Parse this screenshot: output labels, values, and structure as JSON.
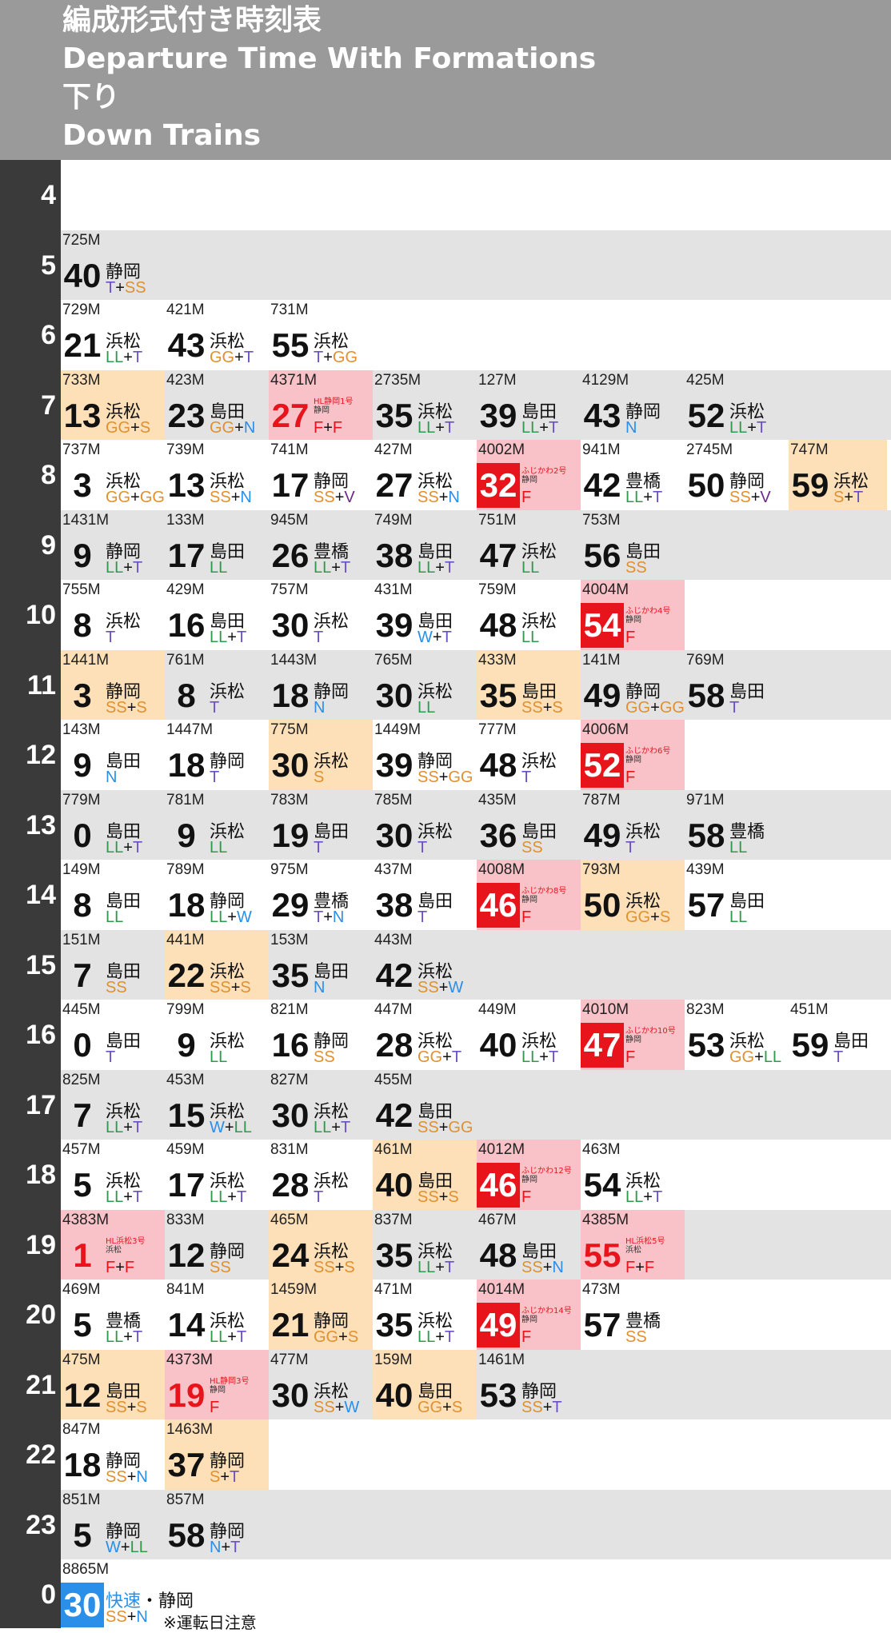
{
  "title": {
    "ja": "編成形式付き時刻表",
    "en": "Departure Time With Formations",
    "direction_ja": "下り",
    "direction_en": "Down Trains"
  },
  "colors": {
    "header_bg": "#9a9a9a",
    "sidebar_bg": "#3a3a3a",
    "row_alt_bg": "#e3e3e3",
    "highlight_orange": "#fde0b8",
    "highlight_pink": "#f8c2c8",
    "red": "#e8141c",
    "blue": "#2a8fe8",
    "formation_codes": {
      "LL": "#2e9a4c",
      "T": "#6b4fc4",
      "W": "#2a8fe8",
      "N": "#2a8fe8",
      "GG": "#e0902e",
      "S": "#e0902e",
      "SS": "#e0902e",
      "V": "#6a2a86",
      "F": "#e8141c"
    }
  },
  "hours": [
    {
      "hour": "4",
      "trains": []
    },
    {
      "hour": "5",
      "trains": [
        {
          "no": "725M",
          "min": "40",
          "dest": "静岡",
          "form": "T+SS"
        }
      ]
    },
    {
      "hour": "6",
      "trains": [
        {
          "no": "729M",
          "min": "21",
          "dest": "浜松",
          "form": "LL+T"
        },
        {
          "no": "421M",
          "min": "43",
          "dest": "浜松",
          "form": "GG+T"
        },
        {
          "no": "731M",
          "min": "55",
          "dest": "浜松",
          "form": "T+GG"
        }
      ]
    },
    {
      "hour": "7",
      "trains": [
        {
          "no": "733M",
          "min": "13",
          "dest": "浜松",
          "form": "GG+S",
          "hl": "orange"
        },
        {
          "no": "423M",
          "min": "23",
          "dest": "島田",
          "form": "GG+N"
        },
        {
          "no": "4371M",
          "min": "27",
          "name": "HL静岡1号",
          "dest": "静岡",
          "form": "F+F",
          "hl": "pink",
          "num": "red"
        },
        {
          "no": "2735M",
          "min": "35",
          "dest": "浜松",
          "form": "LL+T"
        },
        {
          "no": "127M",
          "min": "39",
          "dest": "島田",
          "form": "LL+T"
        },
        {
          "no": "4129M",
          "min": "43",
          "dest": "静岡",
          "form": "N"
        },
        {
          "no": "425M",
          "min": "52",
          "dest": "浜松",
          "form": "LL+T"
        }
      ]
    },
    {
      "hour": "8",
      "trains": [
        {
          "no": "737M",
          "min": "3",
          "dest": "浜松",
          "form": "GG+GG"
        },
        {
          "no": "739M",
          "min": "13",
          "dest": "浜松",
          "form": "SS+N"
        },
        {
          "no": "741M",
          "min": "17",
          "dest": "静岡",
          "form": "SS+V"
        },
        {
          "no": "427M",
          "min": "27",
          "dest": "浜松",
          "form": "SS+N"
        },
        {
          "no": "4002M",
          "min": "32",
          "name": "ふじかわ2号",
          "dest": "静岡",
          "form": "F",
          "hl": "pink",
          "num": "box"
        },
        {
          "no": "941M",
          "min": "42",
          "dest": "豊橋",
          "form": "LL+T"
        },
        {
          "no": "2745M",
          "min": "50",
          "dest": "静岡",
          "form": "SS+V"
        },
        {
          "no": "747M",
          "min": "59",
          "dest": "浜松",
          "form": "S+T",
          "hl": "orange"
        }
      ]
    },
    {
      "hour": "9",
      "trains": [
        {
          "no": "1431M",
          "min": "9",
          "dest": "静岡",
          "form": "LL+T"
        },
        {
          "no": "133M",
          "min": "17",
          "dest": "島田",
          "form": "LL"
        },
        {
          "no": "945M",
          "min": "26",
          "dest": "豊橋",
          "form": "LL+T"
        },
        {
          "no": "749M",
          "min": "38",
          "dest": "島田",
          "form": "LL+T"
        },
        {
          "no": "751M",
          "min": "47",
          "dest": "浜松",
          "form": "LL"
        },
        {
          "no": "753M",
          "min": "56",
          "dest": "島田",
          "form": "SS"
        }
      ]
    },
    {
      "hour": "10",
      "trains": [
        {
          "no": "755M",
          "min": "8",
          "dest": "浜松",
          "form": "T"
        },
        {
          "no": "429M",
          "min": "16",
          "dest": "島田",
          "form": "LL+T"
        },
        {
          "no": "757M",
          "min": "30",
          "dest": "浜松",
          "form": "T"
        },
        {
          "no": "431M",
          "min": "39",
          "dest": "島田",
          "form": "W+T"
        },
        {
          "no": "759M",
          "min": "48",
          "dest": "浜松",
          "form": "LL"
        },
        {
          "no": "4004M",
          "min": "54",
          "name": "ふじかわ4号",
          "dest": "静岡",
          "form": "F",
          "hl": "pink",
          "num": "box"
        }
      ]
    },
    {
      "hour": "11",
      "trains": [
        {
          "no": "1441M",
          "min": "3",
          "dest": "静岡",
          "form": "SS+S",
          "hl": "orange"
        },
        {
          "no": "761M",
          "min": "8",
          "dest": "浜松",
          "form": "T"
        },
        {
          "no": "1443M",
          "min": "18",
          "dest": "静岡",
          "form": "N"
        },
        {
          "no": "765M",
          "min": "30",
          "dest": "浜松",
          "form": "LL"
        },
        {
          "no": "433M",
          "min": "35",
          "dest": "島田",
          "form": "SS+S",
          "hl": "orange"
        },
        {
          "no": "141M",
          "min": "49",
          "dest": "静岡",
          "form": "GG+GG"
        },
        {
          "no": "769M",
          "min": "58",
          "dest": "島田",
          "form": "T"
        }
      ]
    },
    {
      "hour": "12",
      "trains": [
        {
          "no": "143M",
          "min": "9",
          "dest": "島田",
          "form": "N"
        },
        {
          "no": "1447M",
          "min": "18",
          "dest": "静岡",
          "form": "T"
        },
        {
          "no": "775M",
          "min": "30",
          "dest": "浜松",
          "form": "S",
          "hl": "orange"
        },
        {
          "no": "1449M",
          "min": "39",
          "dest": "静岡",
          "form": "SS+GG"
        },
        {
          "no": "777M",
          "min": "48",
          "dest": "浜松",
          "form": "T"
        },
        {
          "no": "4006M",
          "min": "52",
          "name": "ふじかわ6号",
          "dest": "静岡",
          "form": "F",
          "hl": "pink",
          "num": "box"
        }
      ]
    },
    {
      "hour": "13",
      "trains": [
        {
          "no": "779M",
          "min": "0",
          "dest": "島田",
          "form": "LL+T"
        },
        {
          "no": "781M",
          "min": "9",
          "dest": "浜松",
          "form": "LL"
        },
        {
          "no": "783M",
          "min": "19",
          "dest": "島田",
          "form": "T"
        },
        {
          "no": "785M",
          "min": "30",
          "dest": "浜松",
          "form": "T"
        },
        {
          "no": "435M",
          "min": "36",
          "dest": "島田",
          "form": "SS"
        },
        {
          "no": "787M",
          "min": "49",
          "dest": "浜松",
          "form": "T"
        },
        {
          "no": "971M",
          "min": "58",
          "dest": "豊橋",
          "form": "LL"
        }
      ]
    },
    {
      "hour": "14",
      "trains": [
        {
          "no": "149M",
          "min": "8",
          "dest": "島田",
          "form": "LL"
        },
        {
          "no": "789M",
          "min": "18",
          "dest": "静岡",
          "form": "LL+W"
        },
        {
          "no": "975M",
          "min": "29",
          "dest": "豊橋",
          "form": "T+N"
        },
        {
          "no": "437M",
          "min": "38",
          "dest": "島田",
          "form": "T"
        },
        {
          "no": "4008M",
          "min": "46",
          "name": "ふじかわ8号",
          "dest": "静岡",
          "form": "F",
          "hl": "pink",
          "num": "box"
        },
        {
          "no": "793M",
          "min": "50",
          "dest": "浜松",
          "form": "GG+S",
          "hl": "orange"
        },
        {
          "no": "439M",
          "min": "57",
          "dest": "島田",
          "form": "LL"
        }
      ]
    },
    {
      "hour": "15",
      "trains": [
        {
          "no": "151M",
          "min": "7",
          "dest": "島田",
          "form": "SS"
        },
        {
          "no": "441M",
          "min": "22",
          "dest": "浜松",
          "form": "SS+S",
          "hl": "orange"
        },
        {
          "no": "153M",
          "min": "35",
          "dest": "島田",
          "form": "N"
        },
        {
          "no": "443M",
          "min": "42",
          "dest": "浜松",
          "form": "SS+W"
        }
      ]
    },
    {
      "hour": "16",
      "trains": [
        {
          "no": "445M",
          "min": "0",
          "dest": "島田",
          "form": "T"
        },
        {
          "no": "799M",
          "min": "9",
          "dest": "浜松",
          "form": "LL"
        },
        {
          "no": "821M",
          "min": "16",
          "dest": "静岡",
          "form": "SS"
        },
        {
          "no": "447M",
          "min": "28",
          "dest": "浜松",
          "form": "GG+T"
        },
        {
          "no": "449M",
          "min": "40",
          "dest": "浜松",
          "form": "LL+T"
        },
        {
          "no": "4010M",
          "min": "47",
          "name": "ふじかわ10号",
          "dest": "静岡",
          "form": "F",
          "hl": "pink",
          "num": "box"
        },
        {
          "no": "823M",
          "min": "53",
          "dest": "浜松",
          "form": "GG+LL"
        },
        {
          "no": "451M",
          "min": "59",
          "dest": "島田",
          "form": "T"
        }
      ]
    },
    {
      "hour": "17",
      "trains": [
        {
          "no": "825M",
          "min": "7",
          "dest": "浜松",
          "form": "LL+T"
        },
        {
          "no": "453M",
          "min": "15",
          "dest": "浜松",
          "form": "W+LL"
        },
        {
          "no": "827M",
          "min": "30",
          "dest": "浜松",
          "form": "LL+T"
        },
        {
          "no": "455M",
          "min": "42",
          "dest": "島田",
          "form": "SS+GG"
        }
      ]
    },
    {
      "hour": "18",
      "trains": [
        {
          "no": "457M",
          "min": "5",
          "dest": "浜松",
          "form": "LL+T"
        },
        {
          "no": "459M",
          "min": "17",
          "dest": "浜松",
          "form": "LL+T"
        },
        {
          "no": "831M",
          "min": "28",
          "dest": "浜松",
          "form": "T"
        },
        {
          "no": "461M",
          "min": "40",
          "dest": "島田",
          "form": "SS+S",
          "hl": "orange"
        },
        {
          "no": "4012M",
          "min": "46",
          "name": "ふじかわ12号",
          "dest": "静岡",
          "form": "F",
          "hl": "pink",
          "num": "box"
        },
        {
          "no": "463M",
          "min": "54",
          "dest": "浜松",
          "form": "LL+T"
        }
      ]
    },
    {
      "hour": "19",
      "trains": [
        {
          "no": "4383M",
          "min": "1",
          "name": "HL浜松3号",
          "dest": "浜松",
          "form": "F+F",
          "hl": "pink",
          "num": "red"
        },
        {
          "no": "833M",
          "min": "12",
          "dest": "静岡",
          "form": "SS"
        },
        {
          "no": "465M",
          "min": "24",
          "dest": "浜松",
          "form": "SS+S",
          "hl": "orange"
        },
        {
          "no": "837M",
          "min": "35",
          "dest": "浜松",
          "form": "LL+T"
        },
        {
          "no": "467M",
          "min": "48",
          "dest": "島田",
          "form": "SS+N"
        },
        {
          "no": "4385M",
          "min": "55",
          "name": "HL浜松5号",
          "dest": "浜松",
          "form": "F+F",
          "hl": "pink",
          "num": "red"
        }
      ]
    },
    {
      "hour": "20",
      "trains": [
        {
          "no": "469M",
          "min": "5",
          "dest": "豊橋",
          "form": "LL+T"
        },
        {
          "no": "841M",
          "min": "14",
          "dest": "浜松",
          "form": "LL+T"
        },
        {
          "no": "1459M",
          "min": "21",
          "dest": "静岡",
          "form": "GG+S",
          "hl": "orange"
        },
        {
          "no": "471M",
          "min": "35",
          "dest": "浜松",
          "form": "LL+T"
        },
        {
          "no": "4014M",
          "min": "49",
          "name": "ふじかわ14号",
          "dest": "静岡",
          "form": "F",
          "hl": "pink",
          "num": "box"
        },
        {
          "no": "473M",
          "min": "57",
          "dest": "豊橋",
          "form": "SS"
        }
      ]
    },
    {
      "hour": "21",
      "trains": [
        {
          "no": "475M",
          "min": "12",
          "dest": "島田",
          "form": "SS+S",
          "hl": "orange"
        },
        {
          "no": "4373M",
          "min": "19",
          "name": "HL静岡3号",
          "dest": "静岡",
          "form": "F",
          "hl": "pink",
          "num": "red"
        },
        {
          "no": "477M",
          "min": "30",
          "dest": "浜松",
          "form": "SS+W"
        },
        {
          "no": "159M",
          "min": "40",
          "dest": "島田",
          "form": "GG+S",
          "hl": "orange"
        },
        {
          "no": "1461M",
          "min": "53",
          "dest": "静岡",
          "form": "SS+T"
        }
      ]
    },
    {
      "hour": "22",
      "trains": [
        {
          "no": "847M",
          "min": "18",
          "dest": "静岡",
          "form": "SS+N"
        },
        {
          "no": "1463M",
          "min": "37",
          "dest": "静岡",
          "form": "S+T",
          "hl": "orange"
        }
      ]
    },
    {
      "hour": "23",
      "trains": [
        {
          "no": "851M",
          "min": "5",
          "dest": "静岡",
          "form": "W+LL"
        },
        {
          "no": "857M",
          "min": "58",
          "dest": "静岡",
          "form": "N+T"
        }
      ]
    },
    {
      "hour": "0",
      "trains": [
        {
          "no": "8865M",
          "min": "30",
          "kind": "快速",
          "dest": "静岡",
          "form": "SS+N",
          "note": "※運転日注意",
          "num": "blue"
        }
      ]
    }
  ]
}
